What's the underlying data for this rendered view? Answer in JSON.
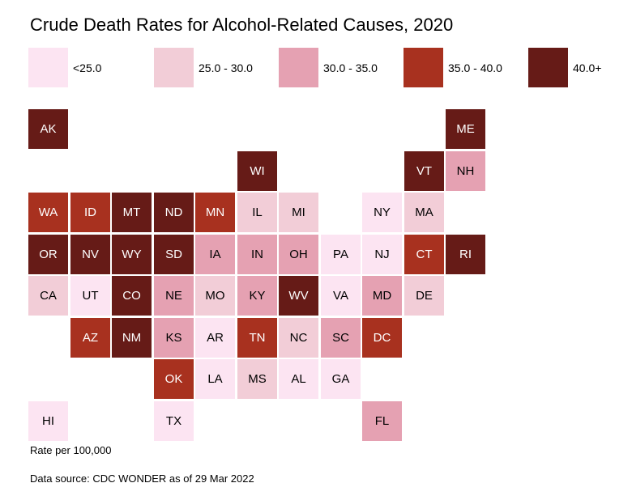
{
  "title": "Crude Death Rates for Alcohol-Related Causes, 2020",
  "legend": [
    {
      "label": "<25.0",
      "color": "#fce4f2"
    },
    {
      "label": "25.0 - 30.0",
      "color": "#f2cdd7"
    },
    {
      "label": "30.0 - 35.0",
      "color": "#e5a1b2"
    },
    {
      "label": "35.0 - 40.0",
      "color": "#a8311f"
    },
    {
      "label": "40.0+",
      "color": "#661b17"
    }
  ],
  "states": [
    {
      "abbr": "AK",
      "col": 0,
      "row": 0,
      "bin": 4
    },
    {
      "abbr": "ME",
      "col": 10,
      "row": 0,
      "bin": 4
    },
    {
      "abbr": "WI",
      "col": 5,
      "row": 1,
      "bin": 4
    },
    {
      "abbr": "VT",
      "col": 9,
      "row": 1,
      "bin": 4
    },
    {
      "abbr": "NH",
      "col": 10,
      "row": 1,
      "bin": 2
    },
    {
      "abbr": "WA",
      "col": 0,
      "row": 2,
      "bin": 3
    },
    {
      "abbr": "ID",
      "col": 1,
      "row": 2,
      "bin": 3
    },
    {
      "abbr": "MT",
      "col": 2,
      "row": 2,
      "bin": 4
    },
    {
      "abbr": "ND",
      "col": 3,
      "row": 2,
      "bin": 4
    },
    {
      "abbr": "MN",
      "col": 4,
      "row": 2,
      "bin": 3
    },
    {
      "abbr": "IL",
      "col": 5,
      "row": 2,
      "bin": 1
    },
    {
      "abbr": "MI",
      "col": 6,
      "row": 2,
      "bin": 1
    },
    {
      "abbr": "NY",
      "col": 8,
      "row": 2,
      "bin": 0
    },
    {
      "abbr": "MA",
      "col": 9,
      "row": 2,
      "bin": 1
    },
    {
      "abbr": "OR",
      "col": 0,
      "row": 3,
      "bin": 4
    },
    {
      "abbr": "NV",
      "col": 1,
      "row": 3,
      "bin": 4
    },
    {
      "abbr": "WY",
      "col": 2,
      "row": 3,
      "bin": 4
    },
    {
      "abbr": "SD",
      "col": 3,
      "row": 3,
      "bin": 4
    },
    {
      "abbr": "IA",
      "col": 4,
      "row": 3,
      "bin": 2
    },
    {
      "abbr": "IN",
      "col": 5,
      "row": 3,
      "bin": 2
    },
    {
      "abbr": "OH",
      "col": 6,
      "row": 3,
      "bin": 2
    },
    {
      "abbr": "PA",
      "col": 7,
      "row": 3,
      "bin": 0
    },
    {
      "abbr": "NJ",
      "col": 8,
      "row": 3,
      "bin": 0
    },
    {
      "abbr": "CT",
      "col": 9,
      "row": 3,
      "bin": 3
    },
    {
      "abbr": "RI",
      "col": 10,
      "row": 3,
      "bin": 4
    },
    {
      "abbr": "CA",
      "col": 0,
      "row": 4,
      "bin": 1
    },
    {
      "abbr": "UT",
      "col": 1,
      "row": 4,
      "bin": 0
    },
    {
      "abbr": "CO",
      "col": 2,
      "row": 4,
      "bin": 4
    },
    {
      "abbr": "NE",
      "col": 3,
      "row": 4,
      "bin": 2
    },
    {
      "abbr": "MO",
      "col": 4,
      "row": 4,
      "bin": 1
    },
    {
      "abbr": "KY",
      "col": 5,
      "row": 4,
      "bin": 2
    },
    {
      "abbr": "WV",
      "col": 6,
      "row": 4,
      "bin": 4
    },
    {
      "abbr": "VA",
      "col": 7,
      "row": 4,
      "bin": 0
    },
    {
      "abbr": "MD",
      "col": 8,
      "row": 4,
      "bin": 2
    },
    {
      "abbr": "DE",
      "col": 9,
      "row": 4,
      "bin": 1
    },
    {
      "abbr": "AZ",
      "col": 1,
      "row": 5,
      "bin": 3
    },
    {
      "abbr": "NM",
      "col": 2,
      "row": 5,
      "bin": 4
    },
    {
      "abbr": "KS",
      "col": 3,
      "row": 5,
      "bin": 2
    },
    {
      "abbr": "AR",
      "col": 4,
      "row": 5,
      "bin": 0
    },
    {
      "abbr": "TN",
      "col": 5,
      "row": 5,
      "bin": 3
    },
    {
      "abbr": "NC",
      "col": 6,
      "row": 5,
      "bin": 1
    },
    {
      "abbr": "SC",
      "col": 7,
      "row": 5,
      "bin": 2
    },
    {
      "abbr": "DC",
      "col": 8,
      "row": 5,
      "bin": 3
    },
    {
      "abbr": "OK",
      "col": 3,
      "row": 6,
      "bin": 3
    },
    {
      "abbr": "LA",
      "col": 4,
      "row": 6,
      "bin": 0
    },
    {
      "abbr": "MS",
      "col": 5,
      "row": 6,
      "bin": 1
    },
    {
      "abbr": "AL",
      "col": 6,
      "row": 6,
      "bin": 0
    },
    {
      "abbr": "GA",
      "col": 7,
      "row": 6,
      "bin": 0
    },
    {
      "abbr": "HI",
      "col": 0,
      "row": 7,
      "bin": 0
    },
    {
      "abbr": "TX",
      "col": 3,
      "row": 7,
      "bin": 0
    },
    {
      "abbr": "FL",
      "col": 8,
      "row": 7,
      "bin": 2
    }
  ],
  "rate_note": "Rate per 100,000",
  "source_note": "Data source: CDC WONDER as of 29 Mar 2022"
}
